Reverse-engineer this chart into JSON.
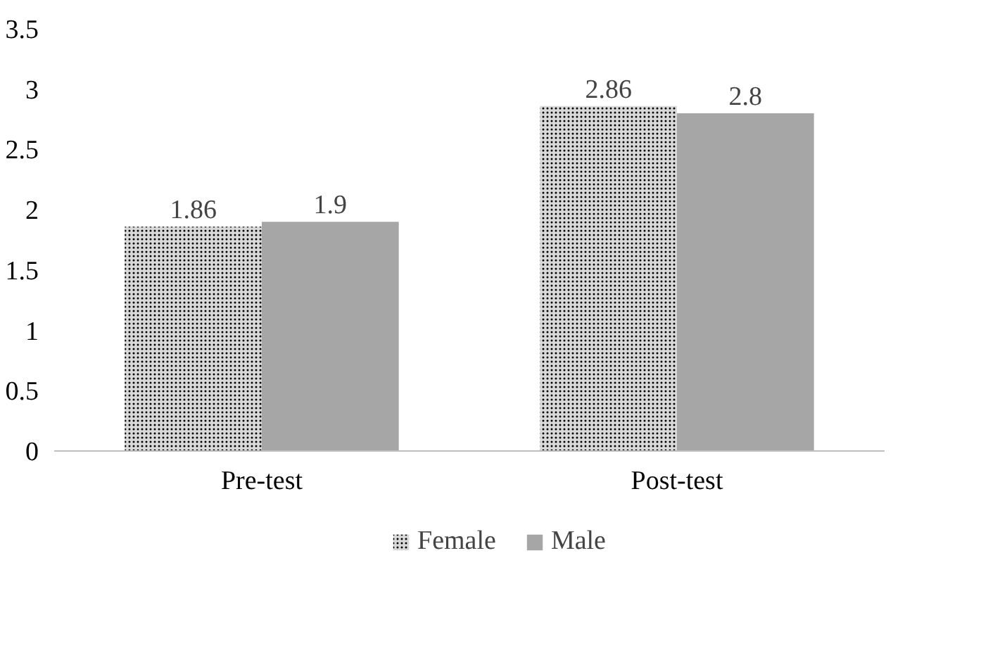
{
  "chart_data": {
    "type": "bar",
    "categories": [
      "Pre-test",
      "Post-test"
    ],
    "series": [
      {
        "name": "Female",
        "color": "#d9d9d9",
        "values": [
          1.86,
          2.86
        ]
      },
      {
        "name": "Male",
        "color": "#a6a6a6",
        "values": [
          1.9,
          2.8
        ]
      }
    ],
    "ylim": [
      0,
      3.5
    ],
    "yticks": [
      0,
      0.5,
      1,
      1.5,
      2,
      2.5,
      3,
      3.5
    ],
    "grid": false,
    "legend": "bottom",
    "data_labels": true
  }
}
